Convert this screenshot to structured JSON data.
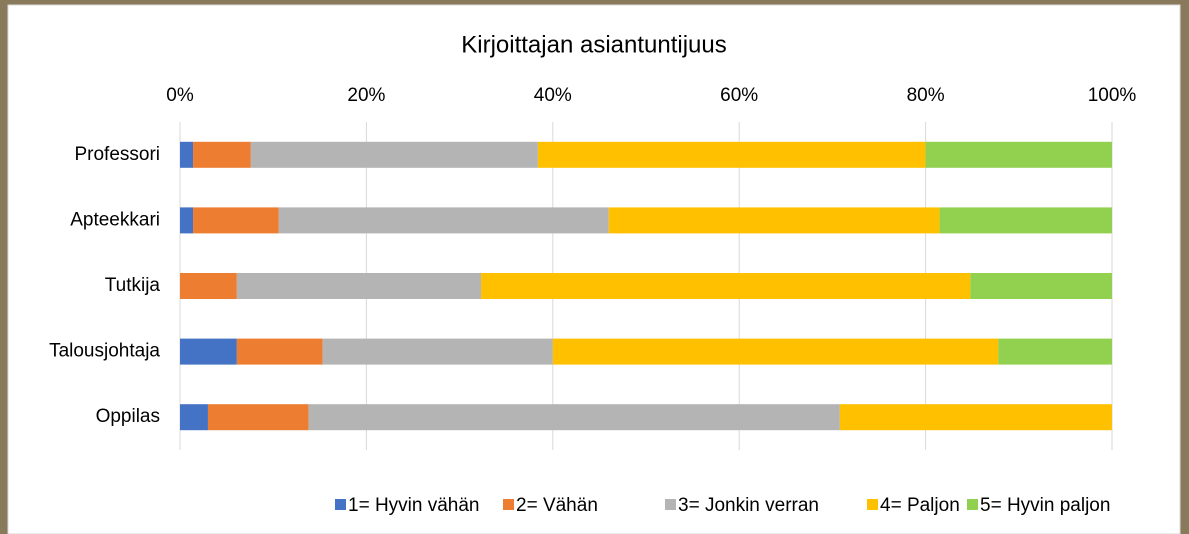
{
  "chart_data": {
    "type": "bar",
    "orientation": "horizontal",
    "stacked": true,
    "title": "Kirjoittajan asiantuntijuus",
    "categories": [
      "Professori",
      "Apteekkari",
      "Tutkija",
      "Talousjohtaja",
      "Oppilas"
    ],
    "series": [
      {
        "name": "1= Hyvin vähän",
        "color": "#4472c4",
        "values": [
          1.4,
          1.4,
          0,
          6.1,
          3.0
        ]
      },
      {
        "name": "2= Vähän",
        "color": "#ed7d31",
        "values": [
          6.2,
          9.2,
          6.1,
          9.2,
          10.8
        ]
      },
      {
        "name": "3= Jonkin verran",
        "color": "#b4b4b4",
        "values": [
          30.8,
          35.4,
          26.2,
          24.7,
          57.0
        ]
      },
      {
        "name": "4= Paljon",
        "color": "#ffc000",
        "values": [
          41.6,
          35.5,
          52.5,
          47.8,
          29.2
        ]
      },
      {
        "name": "5= Hyvin paljon",
        "color": "#92d050",
        "values": [
          20.0,
          18.5,
          15.2,
          12.2,
          0
        ]
      }
    ],
    "xlim": [
      0,
      100
    ],
    "xticks": [
      {
        "value": 0,
        "label": "0%"
      },
      {
        "value": 20,
        "label": "20%"
      },
      {
        "value": 40,
        "label": "40%"
      },
      {
        "value": 60,
        "label": "60%"
      },
      {
        "value": 80,
        "label": "80%"
      },
      {
        "value": 100,
        "label": "100%"
      }
    ],
    "grid": true,
    "legend": "bottom"
  }
}
